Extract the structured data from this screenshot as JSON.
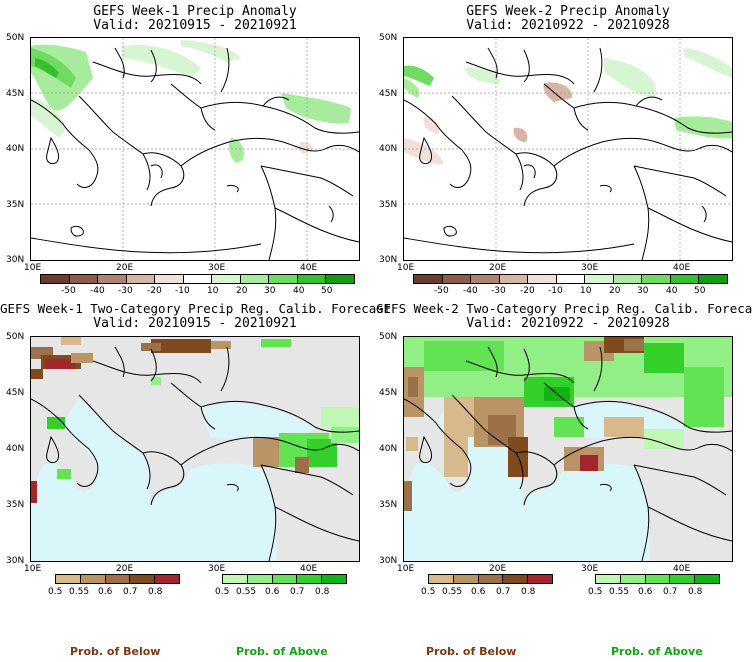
{
  "panels": [
    {
      "title": "GEFS Week-1 Precip Anomaly",
      "valid": "Valid: 20210915 - 20210921"
    },
    {
      "title": "GEFS Week-2 Precip Anomaly",
      "valid": "Valid: 20210922 - 20210928"
    },
    {
      "title": "GEFS Week-1 Two-Category Precip Reg. Calib. Forecast",
      "valid": "Valid: 20210915 - 20210921"
    },
    {
      "title": "GEFS Week-2 Two-Category Precip Reg. Calib. Forecast",
      "valid": "Valid: 20210922 - 20210928"
    }
  ],
  "axes": {
    "lat_labels": [
      "50N",
      "45N",
      "40N",
      "35N",
      "30N"
    ],
    "lon_labels": [
      "10E",
      "20E",
      "30E",
      "40E"
    ]
  },
  "anomaly_colorbar": {
    "labels": [
      "-50",
      "-40",
      "-30",
      "-20",
      "-10",
      "10",
      "20",
      "30",
      "40",
      "50"
    ],
    "colors": [
      "#6e3b2a",
      "#8f5a47",
      "#b0826f",
      "#d6b4a6",
      "#efe0d8",
      "#ffffff",
      "#d8f5d3",
      "#a7eb9c",
      "#6fdb63",
      "#36c02d",
      "#129c12"
    ]
  },
  "prob_below": {
    "labels": [
      "0.5",
      "0.55",
      "0.6",
      "0.7",
      "0.8"
    ],
    "colors": [
      "#d8b98e",
      "#b99467",
      "#9c7149",
      "#7e4a1e",
      "#a2262b"
    ],
    "caption": "Prob. of Below",
    "caption_color": "#7a3b14"
  },
  "prob_above": {
    "labels": [
      "0.5",
      "0.55",
      "0.6",
      "0.7",
      "0.8"
    ],
    "colors": [
      "#bff7b5",
      "#92ef85",
      "#62e354",
      "#34cf29",
      "#12b312"
    ],
    "caption": "Prob. of Above",
    "caption_color": "#13a513"
  }
}
